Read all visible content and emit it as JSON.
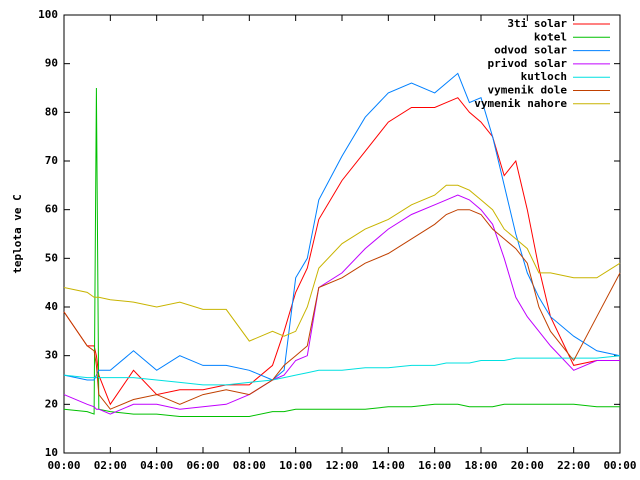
{
  "chart_data": {
    "type": "line",
    "y_label": "teplota ve C",
    "x": [
      0,
      1,
      1.3,
      1.4,
      1.5,
      2,
      3,
      4,
      5,
      6,
      7,
      8,
      9,
      9.5,
      10,
      10.5,
      11,
      12,
      13,
      14,
      15,
      16,
      16.5,
      17,
      17.5,
      18,
      18.5,
      19,
      19.5,
      20,
      20.5,
      21,
      22,
      23,
      24
    ],
    "xlim": [
      0,
      24
    ],
    "xticks": [
      {
        "value": 0,
        "label": "00:00"
      },
      {
        "value": 2,
        "label": "02:00"
      },
      {
        "value": 4,
        "label": "04:00"
      },
      {
        "value": 6,
        "label": "06:00"
      },
      {
        "value": 8,
        "label": "08:00"
      },
      {
        "value": 10,
        "label": "10:00"
      },
      {
        "value": 12,
        "label": "12:00"
      },
      {
        "value": 14,
        "label": "14:00"
      },
      {
        "value": 16,
        "label": "16:00"
      },
      {
        "value": 18,
        "label": "18:00"
      },
      {
        "value": 20,
        "label": "20:00"
      },
      {
        "value": 22,
        "label": "22:00"
      },
      {
        "value": 24,
        "label": "00:00"
      }
    ],
    "ylim": [
      10,
      100
    ],
    "yticks": [
      10,
      20,
      30,
      40,
      50,
      60,
      70,
      80,
      90,
      100
    ],
    "legend": "top-right",
    "series": [
      {
        "name": "3ti solar",
        "color": "#ff0000",
        "values": [
          39,
          32,
          32,
          30,
          26,
          20,
          27,
          22,
          23,
          23,
          24,
          24,
          28,
          35,
          43,
          48,
          58,
          66,
          72,
          78,
          81,
          81,
          82,
          83,
          80,
          78,
          75,
          67,
          70,
          60,
          48,
          38,
          28,
          29,
          29
        ]
      },
      {
        "name": "kotel",
        "color": "#00c000",
        "values": [
          19,
          18.5,
          18,
          85,
          19,
          18.5,
          18,
          18,
          17.5,
          17.5,
          17.5,
          17.5,
          18.5,
          18.5,
          19,
          19,
          19,
          19,
          19,
          19.5,
          19.5,
          20,
          20,
          20,
          19.5,
          19.5,
          19.5,
          20,
          20,
          20,
          20,
          20,
          20,
          19.5,
          19.5
        ]
      },
      {
        "name": "odvod solar",
        "color": "#0080ff",
        "values": [
          26,
          25,
          25,
          26,
          27,
          27,
          31,
          27,
          30,
          28,
          28,
          27,
          25,
          27,
          46,
          50,
          62,
          71,
          79,
          84,
          86,
          84,
          86,
          88,
          82,
          83,
          75,
          65,
          55,
          47,
          42,
          38,
          34,
          31,
          30
        ]
      },
      {
        "name": "privod solar",
        "color": "#c000ff",
        "values": [
          22,
          20,
          19.5,
          19,
          19,
          18,
          20,
          20,
          19,
          19.5,
          20,
          22,
          25,
          26,
          29,
          30,
          44,
          47,
          52,
          56,
          59,
          61,
          62,
          63,
          62,
          60,
          57,
          50,
          42,
          38,
          35,
          32,
          27,
          29,
          29
        ]
      },
      {
        "name": "kutloch",
        "color": "#00e0e0",
        "values": [
          26,
          25.5,
          25.5,
          25.5,
          25.5,
          25.5,
          25.5,
          25,
          24.5,
          24,
          24,
          24.5,
          25,
          25.5,
          26,
          26.5,
          27,
          27,
          27.5,
          27.5,
          28,
          28,
          28.5,
          28.5,
          28.5,
          29,
          29,
          29,
          29.5,
          29.5,
          29.5,
          29.5,
          29.5,
          29.5,
          30
        ]
      },
      {
        "name": "vymenik dole",
        "color": "#c04000",
        "values": [
          39,
          32,
          31,
          28,
          22,
          19,
          21,
          22,
          20,
          22,
          23,
          22,
          25,
          28,
          30,
          32,
          44,
          46,
          49,
          51,
          54,
          57,
          59,
          60,
          60,
          59,
          56,
          54,
          52,
          49,
          40,
          35,
          29,
          38,
          47
        ]
      },
      {
        "name": "vymenik nahore",
        "color": "#c8b400",
        "values": [
          44,
          43,
          42,
          42,
          42,
          41.5,
          41,
          40,
          41,
          39.5,
          39.5,
          33,
          35,
          34,
          35,
          40,
          48,
          53,
          56,
          58,
          61,
          63,
          65,
          65,
          64,
          62,
          60,
          56,
          54,
          52,
          47,
          47,
          46,
          46,
          49
        ]
      }
    ]
  }
}
